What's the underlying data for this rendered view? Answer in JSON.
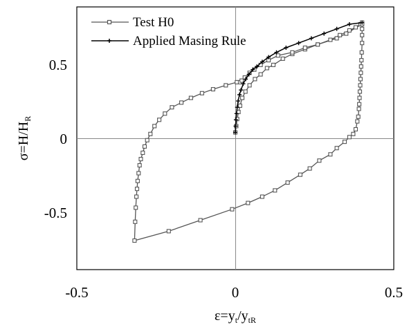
{
  "chart_data": {
    "type": "line",
    "xlim": [
      -0.5,
      0.5
    ],
    "ylim": [
      -0.875,
      0.8
    ],
    "x_ticks": [
      "-0.5",
      "0",
      "0.5"
    ],
    "y_ticks": [
      "-0.5",
      "0",
      "0.5"
    ],
    "x_tick_values": [
      -0.5,
      0,
      0.5
    ],
    "y_tick_values": [
      -0.5,
      0,
      0.5
    ],
    "xlabel": {
      "main": "ε=y",
      "sub1": "t",
      "mid": "/y",
      "sub2": "tR"
    },
    "ylabel": {
      "main": "σ=H/H",
      "sub": "R"
    },
    "legend_position": "top-left",
    "grid": false,
    "series": [
      {
        "name": "Test H0",
        "marker": "square",
        "color": "#555555",
        "x": [
          0.0,
          0.003,
          0.006,
          0.01,
          0.015,
          0.022,
          0.032,
          0.045,
          0.062,
          0.08,
          0.1,
          0.12,
          0.15,
          0.18,
          0.22,
          0.26,
          0.3,
          0.33,
          0.36,
          0.38,
          0.395,
          0.4,
          0.4,
          0.4,
          0.4,
          0.399,
          0.398,
          0.397,
          0.396,
          0.395,
          0.394,
          0.393,
          0.392,
          0.391,
          0.39,
          0.388,
          0.385,
          0.38,
          0.372,
          0.36,
          0.345,
          0.32,
          0.3,
          0.265,
          0.235,
          0.205,
          0.165,
          0.125,
          0.085,
          0.04,
          -0.01,
          -0.11,
          -0.21,
          -0.318,
          -0.316,
          -0.314,
          -0.312,
          -0.31,
          -0.308,
          -0.305,
          -0.302,
          -0.298,
          -0.292,
          -0.286,
          -0.278,
          -0.268,
          -0.255,
          -0.24,
          -0.222,
          -0.2,
          -0.17,
          -0.14,
          -0.105,
          -0.07,
          -0.03,
          0.005,
          0.015,
          0.02,
          0.03,
          0.045,
          0.06,
          0.08,
          0.105,
          0.135,
          0.18,
          0.22,
          0.26,
          0.32,
          0.35,
          0.4
        ],
        "y": [
          0.0,
          0.04,
          0.085,
          0.13,
          0.17,
          0.22,
          0.26,
          0.3,
          0.34,
          0.37,
          0.41,
          0.43,
          0.47,
          0.5,
          0.53,
          0.56,
          0.59,
          0.62,
          0.65,
          0.67,
          0.69,
          0.7,
          0.66,
          0.62,
          0.57,
          0.51,
          0.46,
          0.42,
          0.38,
          0.34,
          0.3,
          0.26,
          0.22,
          0.18,
          0.15,
          0.1,
          0.07,
          0.02,
          -0.01,
          -0.03,
          -0.06,
          -0.1,
          -0.14,
          -0.18,
          -0.23,
          -0.27,
          -0.32,
          -0.37,
          -0.41,
          -0.45,
          -0.49,
          -0.56,
          -0.63,
          -0.69,
          -0.57,
          -0.48,
          -0.41,
          -0.36,
          -0.31,
          -0.26,
          -0.21,
          -0.17,
          -0.13,
          -0.09,
          -0.05,
          -0.01,
          0.04,
          0.08,
          0.12,
          0.16,
          0.19,
          0.22,
          0.25,
          0.275,
          0.3,
          0.32,
          0.32,
          0.33,
          0.35,
          0.38,
          0.4,
          0.43,
          0.46,
          0.49,
          0.51,
          0.54,
          0.56,
          0.6,
          0.63,
          0.69
        ]
      },
      {
        "name": "Applied Masing Rule",
        "marker": "plus",
        "color": "#000000",
        "x": [
          0.0,
          0.001,
          0.002,
          0.004,
          0.006,
          0.009,
          0.013,
          0.018,
          0.025,
          0.033,
          0.043,
          0.055,
          0.068,
          0.085,
          0.105,
          0.13,
          0.16,
          0.2,
          0.24,
          0.28,
          0.32,
          0.36,
          0.4
        ],
        "y": [
          0.0,
          0.04,
          0.08,
          0.12,
          0.16,
          0.2,
          0.24,
          0.27,
          0.31,
          0.34,
          0.37,
          0.4,
          0.42,
          0.45,
          0.48,
          0.51,
          0.54,
          0.57,
          0.6,
          0.63,
          0.66,
          0.69,
          0.7
        ]
      }
    ]
  }
}
